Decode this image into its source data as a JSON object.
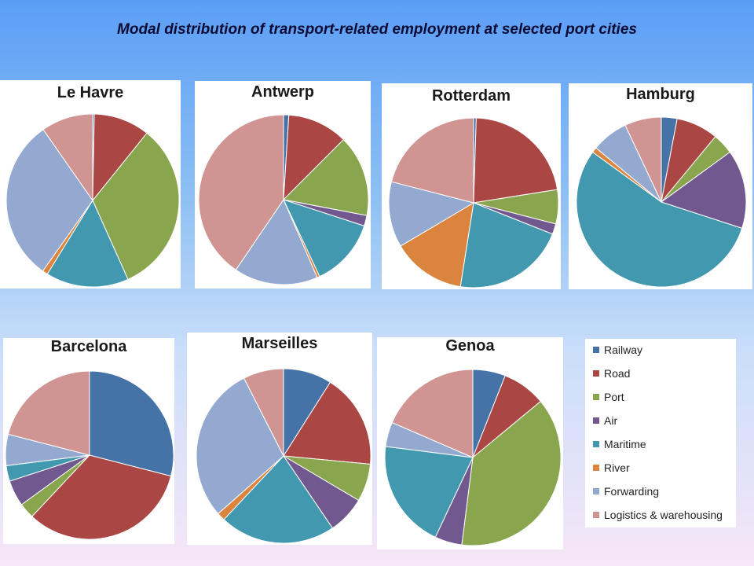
{
  "title": "Modal distribution of transport-related  employment at selected port cities",
  "colors": {
    "Railway": "#4572a7",
    "Road": "#aa4643",
    "Port": "#89a54e",
    "Air": "#71588f",
    "Maritime": "#4198af",
    "River": "#db843d",
    "Forwarding": "#93a9cf",
    "Logistics & warehousing": "#d09592"
  },
  "chart_data": [
    {
      "type": "pie",
      "title": "Le Havre",
      "categories": [
        "Railway",
        "Road",
        "Port",
        "Air",
        "Maritime",
        "River",
        "Forwarding",
        "Logistics & warehousing"
      ],
      "values": [
        0.3,
        10.5,
        32.5,
        0,
        15.5,
        1,
        30.5,
        9.7
      ]
    },
    {
      "type": "pie",
      "title": "Antwerp",
      "categories": [
        "Railway",
        "Road",
        "Port",
        "Air",
        "Maritime",
        "River",
        "Forwarding",
        "Logistics & warehousing"
      ],
      "values": [
        1,
        11.5,
        15.5,
        2,
        13,
        0.5,
        16,
        40.5
      ]
    },
    {
      "type": "pie",
      "title": "Rotterdam",
      "categories": [
        "Railway",
        "Road",
        "Port",
        "Air",
        "Maritime",
        "River",
        "Forwarding",
        "Logistics & warehousing"
      ],
      "values": [
        0.5,
        22,
        6.5,
        2,
        21.5,
        14,
        12.5,
        21
      ]
    },
    {
      "type": "pie",
      "title": "Hamburg",
      "categories": [
        "Railway",
        "Road",
        "Port",
        "Air",
        "Maritime",
        "River",
        "Forwarding",
        "Logistics & warehousing"
      ],
      "values": [
        3,
        8,
        4,
        15,
        55,
        1,
        7,
        7
      ]
    },
    {
      "type": "pie",
      "title": "Barcelona",
      "categories": [
        "Railway",
        "Road",
        "Port",
        "Air",
        "Maritime",
        "River",
        "Forwarding",
        "Logistics & warehousing"
      ],
      "values": [
        29,
        33,
        3,
        5,
        3,
        0,
        6,
        21
      ]
    },
    {
      "type": "pie",
      "title": "Marseilles",
      "categories": [
        "Railway",
        "Road",
        "Port",
        "Air",
        "Maritime",
        "River",
        "Forwarding",
        "Logistics & warehousing"
      ],
      "values": [
        9,
        17.5,
        7,
        7,
        21.5,
        1.5,
        29,
        7.5
      ]
    },
    {
      "type": "pie",
      "title": "Genoa",
      "categories": [
        "Railway",
        "Road",
        "Port",
        "Air",
        "Maritime",
        "River",
        "Forwarding",
        "Logistics & warehousing"
      ],
      "values": [
        6,
        8,
        38,
        5,
        20,
        0,
        4.5,
        18.5
      ]
    }
  ],
  "legend": {
    "items": [
      "Railway",
      "Road",
      "Port",
      "Air",
      "Maritime",
      "River",
      "Forwarding",
      "Logistics & warehousing"
    ]
  }
}
